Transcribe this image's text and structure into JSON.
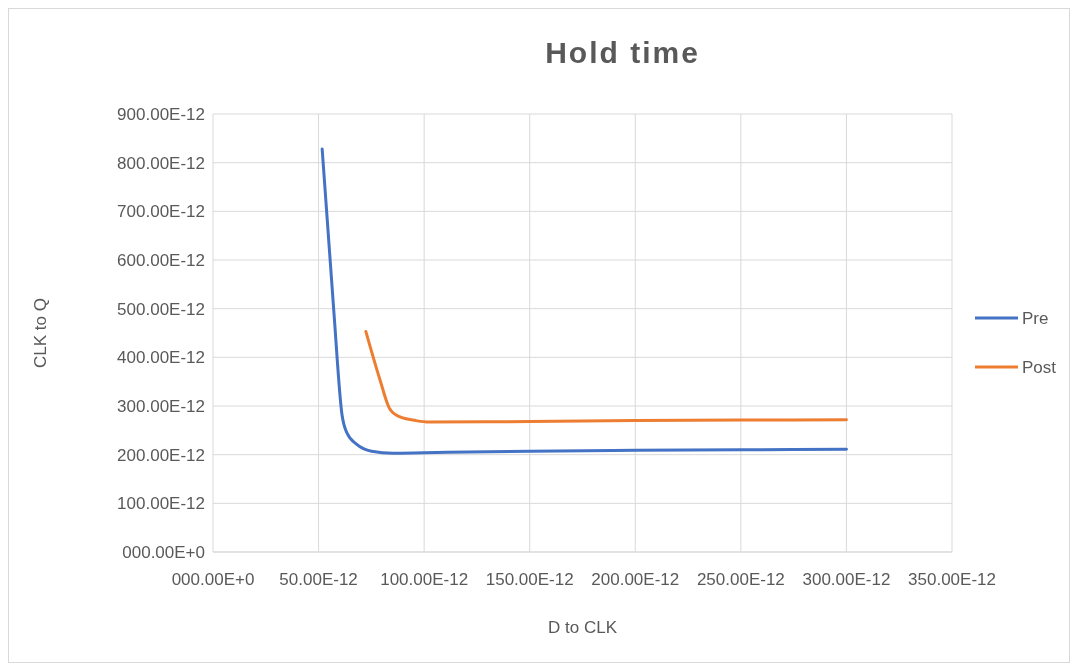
{
  "chart_data": {
    "type": "line",
    "title": "Hold time",
    "xlabel": "D to CLK",
    "ylabel": "CLK to Q",
    "legend": "right",
    "grid": true,
    "xlim": [
      0,
      3.5e-10
    ],
    "ylim": [
      0,
      9e-10
    ],
    "xticks": [
      {
        "value": 0,
        "label": "000.00E+0"
      },
      {
        "value": 5e-11,
        "label": "50.00E-12"
      },
      {
        "value": 1e-10,
        "label": "100.00E-12"
      },
      {
        "value": 1.5e-10,
        "label": "150.00E-12"
      },
      {
        "value": 2e-10,
        "label": "200.00E-12"
      },
      {
        "value": 2.5e-10,
        "label": "250.00E-12"
      },
      {
        "value": 3e-10,
        "label": "300.00E-12"
      },
      {
        "value": 3.5e-10,
        "label": "350.00E-12"
      }
    ],
    "yticks": [
      {
        "value": 0,
        "label": "000.00E+0"
      },
      {
        "value": 1e-10,
        "label": "100.00E-12"
      },
      {
        "value": 2e-10,
        "label": "200.00E-12"
      },
      {
        "value": 3e-10,
        "label": "300.00E-12"
      },
      {
        "value": 4e-10,
        "label": "400.00E-12"
      },
      {
        "value": 5e-10,
        "label": "500.00E-12"
      },
      {
        "value": 6e-10,
        "label": "600.00E-12"
      },
      {
        "value": 7e-10,
        "label": "700.00E-12"
      },
      {
        "value": 8e-10,
        "label": "800.00E-12"
      },
      {
        "value": 9e-10,
        "label": "900.00E-12"
      }
    ],
    "series": [
      {
        "name": "Pre",
        "color": "#4472c4",
        "x": [
          5.17e-11,
          5.72e-11,
          6.11e-11,
          6.34e-11,
          6.81e-11,
          7.51e-11,
          8.52e-11,
          1e-10,
          1.5e-10,
          2e-10,
          2.5e-10,
          3e-10
        ],
        "values": [
          8.28e-10,
          4.96e-10,
          2.82e-10,
          2.45e-10,
          2.21e-10,
          2.07e-10,
          2.03e-10,
          2.04e-10,
          2.07e-10,
          2.09e-10,
          2.1e-10,
          2.11e-10
        ]
      },
      {
        "name": "Post",
        "color": "#ed7d31",
        "x": [
          7.24e-11,
          7.9e-11,
          8.36e-11,
          8.83e-11,
          9.61e-11,
          1.023e-10,
          1.5e-10,
          2e-10,
          2.5e-10,
          3e-10
        ],
        "values": [
          4.53e-10,
          3.55e-10,
          2.95e-10,
          2.78e-10,
          2.7e-10,
          2.67e-10,
          2.68e-10,
          2.7e-10,
          2.71e-10,
          2.72e-10
        ]
      }
    ]
  }
}
